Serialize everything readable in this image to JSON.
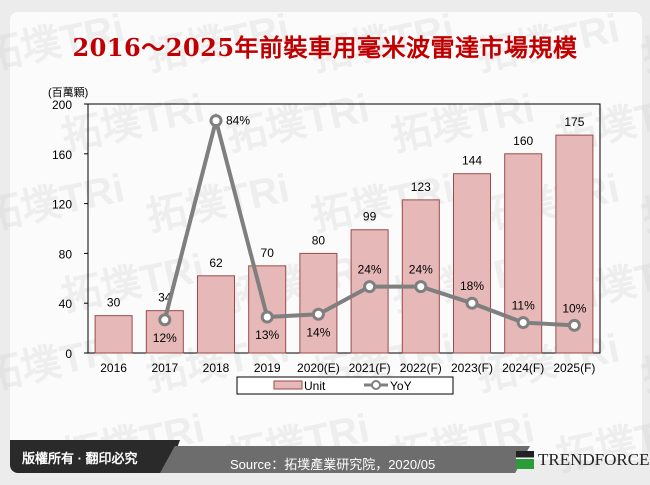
{
  "title": "2016～2025年前裝車用毫米波雷達市場規模",
  "footer": {
    "copyright": "版權所有 · 翻印必究",
    "source": "Source：拓墣產業研究院，2020/05",
    "logo": "TRENDFORCE"
  },
  "watermark": "拓墣TRi",
  "chart_data": {
    "type": "bar+line",
    "title": "2016～2025年前裝車用毫米波雷達市場規模",
    "ylabel": "(百萬顆)",
    "ylim": [
      0,
      200
    ],
    "yticks": [
      0,
      40,
      80,
      120,
      160,
      200
    ],
    "y2lim": [
      0,
      90
    ],
    "categories": [
      "2016",
      "2017",
      "2018",
      "2019",
      "2020(E)",
      "2021(F)",
      "2022(F)",
      "2023(F)",
      "2024(F)",
      "2025(F)"
    ],
    "series": [
      {
        "name": "Unit",
        "type": "bar",
        "values": [
          30,
          34,
          62,
          70,
          80,
          99,
          123,
          144,
          160,
          175
        ],
        "color": "#e6b8b8",
        "border": "#9b4a4a"
      },
      {
        "name": "YoY",
        "type": "line",
        "values": [
          null,
          12,
          84,
          13,
          14,
          24,
          24,
          18,
          11,
          10
        ],
        "labels": [
          "",
          "12%",
          "84%",
          "13%",
          "14%",
          "24%",
          "24%",
          "18%",
          "11%",
          "10%"
        ],
        "color": "#7f7f7f"
      }
    ],
    "legend": "bottom",
    "grid": false
  }
}
